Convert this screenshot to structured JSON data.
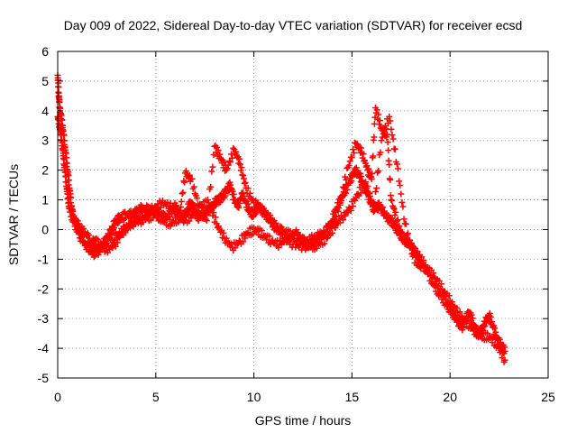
{
  "chart_data": {
    "type": "scatter",
    "title": "Day 009 of 2022, Sidereal Day-to-day VTEC variation (SDTVAR) for receiver ecsd",
    "xlabel": "GPS time / hours",
    "ylabel": "SDTVAR / TECUs",
    "xlim": [
      0,
      25
    ],
    "ylim": [
      -5,
      6
    ],
    "xticks": [
      0,
      5,
      10,
      15,
      20,
      25
    ],
    "yticks": [
      -5,
      -4,
      -3,
      -2,
      -1,
      0,
      1,
      2,
      3,
      4,
      5,
      6
    ],
    "grid": true,
    "marker": "+",
    "series": [
      {
        "name": "SDTVAR",
        "color": "#ff0000",
        "x": [
          0.0,
          0.05,
          0.1,
          0.2,
          0.3,
          0.4,
          0.5,
          0.6,
          0.7,
          0.8,
          1.0,
          1.2,
          1.5,
          1.7,
          1.9,
          2.0,
          2.2,
          2.4,
          2.6,
          2.8,
          3.0,
          3.2,
          3.5,
          3.8,
          4.0,
          4.2,
          4.5,
          4.8,
          5.0,
          5.2,
          5.5,
          5.8,
          6.0,
          6.2,
          6.4,
          6.6,
          6.8,
          7.0,
          7.2,
          7.5,
          7.8,
          8.0,
          8.2,
          8.4,
          8.6,
          8.8,
          9.0,
          9.2,
          9.4,
          9.6,
          9.8,
          10.0,
          10.2,
          10.5,
          10.8,
          11.0,
          11.3,
          11.6,
          12.0,
          12.3,
          12.6,
          13.0,
          13.3,
          13.6,
          14.0,
          14.2,
          14.5,
          14.8,
          15.0,
          15.2,
          15.4,
          15.6,
          15.8,
          16.0,
          16.2,
          16.4,
          16.6,
          16.8,
          17.0,
          17.2,
          17.4,
          17.6,
          17.8,
          18.0,
          18.3,
          18.6,
          18.9,
          19.2,
          19.5,
          19.8,
          20.0,
          20.2,
          20.4,
          20.6,
          20.8,
          21.0,
          21.2,
          21.4,
          21.6,
          21.8,
          22.0,
          22.2,
          22.4,
          22.6,
          22.8
        ],
        "values": [
          5.2,
          4.6,
          4.1,
          3.7,
          3.2,
          2.6,
          2.0,
          1.4,
          0.8,
          0.4,
          0.2,
          0.0,
          -0.2,
          -0.5,
          -0.7,
          -0.7,
          -0.6,
          -0.4,
          -0.2,
          0.1,
          0.3,
          0.4,
          0.5,
          0.5,
          0.6,
          0.7,
          0.7,
          0.6,
          0.6,
          0.5,
          0.4,
          0.6,
          0.8,
          0.5,
          0.3,
          0.7,
          0.9,
          0.6,
          0.4,
          0.5,
          0.7,
          0.9,
          1.0,
          1.1,
          1.3,
          1.5,
          1.0,
          0.8,
          1.2,
          0.9,
          0.6,
          0.5,
          0.8,
          0.6,
          0.4,
          0.2,
          0.0,
          -0.1,
          -0.2,
          -0.3,
          -0.4,
          -0.3,
          -0.2,
          -0.1,
          0.3,
          0.7,
          1.1,
          1.5,
          1.8,
          2.0,
          1.8,
          1.5,
          1.2,
          0.9,
          0.7,
          0.8,
          0.6,
          0.4,
          0.3,
          0.1,
          -0.1,
          -0.3,
          -0.4,
          -0.5,
          -0.8,
          -1.2,
          -1.5,
          -1.9,
          -2.2,
          -2.5,
          -2.7,
          -2.9,
          -3.1,
          -3.3,
          -3.0,
          -2.8,
          -3.2,
          -3.5,
          -3.4,
          -3.1,
          -2.9,
          -3.3,
          -3.7,
          -3.9,
          -4.1
        ]
      },
      {
        "name": "SDTVAR",
        "color": "#ff0000",
        "x": [
          0.0,
          0.1,
          0.2,
          0.3,
          0.4,
          0.5,
          0.6,
          0.8,
          1.0,
          1.2,
          1.5,
          1.8,
          2.0,
          2.3,
          2.6,
          3.0,
          3.4,
          3.8,
          4.2,
          4.6,
          5.0,
          5.4,
          5.8,
          6.2,
          6.5,
          6.8,
          7.2,
          7.6,
          8.0,
          8.3,
          8.6,
          9.0,
          9.3,
          9.6,
          10.0,
          10.4,
          10.8,
          11.2,
          11.6,
          12.0,
          12.5,
          13.0,
          13.5,
          14.0,
          14.4,
          14.8,
          15.2,
          15.5,
          15.8,
          16.0,
          16.2,
          16.5,
          16.8,
          17.0,
          17.3,
          17.6,
          18.0,
          18.4,
          18.8,
          19.2,
          19.6,
          20.0,
          20.4,
          20.8,
          21.2,
          21.6,
          22.0,
          22.4,
          22.8
        ],
        "values": [
          3.8,
          3.5,
          3.0,
          2.4,
          1.8,
          1.2,
          0.7,
          0.3,
          0.0,
          -0.3,
          -0.6,
          -0.8,
          -0.8,
          -0.5,
          -0.3,
          -0.2,
          0.0,
          0.2,
          0.3,
          0.4,
          0.5,
          0.3,
          0.2,
          0.4,
          1.9,
          1.7,
          0.8,
          0.3,
          2.8,
          2.4,
          2.0,
          2.7,
          2.2,
          1.4,
          0.9,
          0.7,
          0.3,
          0.0,
          -0.3,
          -0.5,
          -0.6,
          -0.5,
          -0.2,
          0.2,
          0.9,
          2.1,
          2.9,
          2.6,
          2.0,
          1.7,
          4.1,
          3.4,
          3.2,
          1.0,
          0.3,
          -0.3,
          -0.6,
          -0.9,
          -1.3,
          -1.6,
          -2.0,
          -2.4,
          -2.8,
          -3.1,
          -3.4,
          -3.6,
          -3.6,
          -3.9,
          -4.4
        ]
      },
      {
        "name": "SDTVAR",
        "color": "#ff0000",
        "x": [
          1.8,
          2.1,
          2.5,
          2.9,
          3.3,
          3.7,
          4.1,
          4.5,
          4.9,
          5.3,
          5.7,
          6.1,
          6.5,
          6.9,
          7.3,
          7.7,
          8.1,
          8.5,
          8.9,
          9.3,
          9.7,
          10.1,
          10.5,
          10.9,
          11.3,
          11.7,
          12.1,
          12.5,
          12.9,
          13.3,
          13.7,
          14.1,
          14.5,
          14.9,
          15.3,
          15.7,
          16.1,
          16.5,
          16.9,
          17.3,
          17.7,
          18.1,
          18.5
        ],
        "values": [
          -0.3,
          -0.5,
          -0.7,
          -0.5,
          -0.1,
          0.2,
          0.4,
          0.6,
          0.7,
          0.9,
          0.8,
          0.5,
          0.3,
          0.5,
          0.8,
          0.9,
          0.2,
          -0.3,
          -0.6,
          -0.4,
          -0.1,
          0.0,
          -0.2,
          -0.4,
          -0.5,
          -0.3,
          -0.1,
          -0.4,
          -0.6,
          -0.5,
          -0.3,
          0.1,
          0.4,
          0.7,
          1.2,
          1.6,
          0.6,
          3.0,
          3.8,
          2.2,
          0.2,
          -0.9,
          -1.3
        ]
      }
    ]
  }
}
